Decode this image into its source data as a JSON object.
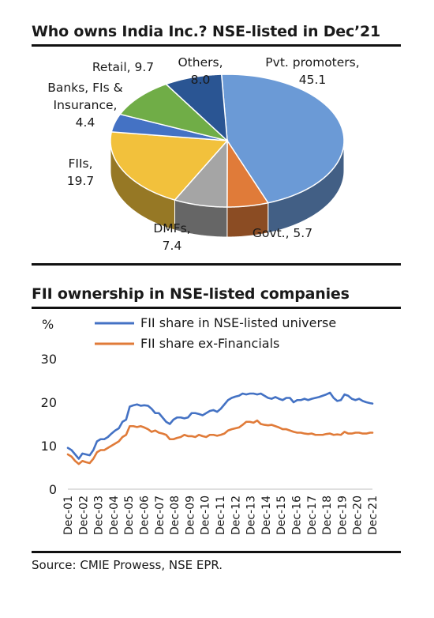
{
  "pie_title": "Who owns India Inc.? NSE-listed in Dec’21",
  "line_title": "FII ownership in NSE-listed companies",
  "source": "Source: CMIE Prowess, NSE EPR.",
  "chart_data": [
    {
      "type": "pie",
      "title": "Who owns India Inc.? NSE-listed in Dec’21",
      "slices": [
        {
          "name": "Pvt. promoters",
          "value": 45.1,
          "color": "#6b9ad6",
          "label_lines": [
            "Pvt. promoters,",
            "45.1"
          ]
        },
        {
          "name": "Govt.",
          "value": 5.7,
          "color": "#e07b39",
          "label_lines": [
            "Govt.,  5.7"
          ]
        },
        {
          "name": "DMFs",
          "value": 7.4,
          "color": "#a5a5a5",
          "label_lines": [
            "DMFs,",
            "7.4"
          ]
        },
        {
          "name": "FIIs",
          "value": 19.7,
          "color": "#f2c13c",
          "label_lines": [
            "FIIs,",
            "19.7"
          ]
        },
        {
          "name": "Banks, FIs & Insurance",
          "value": 4.4,
          "color": "#4472c4",
          "label_lines": [
            "Banks, FIs &",
            "Insurance,",
            "4.4"
          ]
        },
        {
          "name": "Retail",
          "value": 9.7,
          "color": "#70ad47",
          "label_lines": [
            "Retail,  9.7"
          ]
        },
        {
          "name": "Others",
          "value": 8.0,
          "color": "#2a5593",
          "label_lines": [
            "Others,",
            "8.0"
          ]
        }
      ]
    },
    {
      "type": "line",
      "title": "FII ownership in NSE-listed companies",
      "ylabel": "%",
      "ylim": [
        0,
        30
      ],
      "yticks": [
        0,
        10,
        20,
        30
      ],
      "x_start": 2001.0,
      "x_end": 2021.917,
      "categories": [
        "Dec-01",
        "Dec-02",
        "Dec-03",
        "Dec-04",
        "Dec-05",
        "Dec-06",
        "Dec-07",
        "Dec-08",
        "Dec-09",
        "Dec-10",
        "Dec-11",
        "Dec-12",
        "Dec-13",
        "Dec-14",
        "Dec-15",
        "Dec-16",
        "Dec-17",
        "Dec-18",
        "Dec-19",
        "Dec-20",
        "Dec-21"
      ],
      "legend": "top",
      "series": [
        {
          "name": "FII share in NSE-listed universe",
          "color": "#4472c4",
          "x": [
            2001.0,
            2001.25,
            2001.5,
            2001.75,
            2002.0,
            2002.25,
            2002.5,
            2002.75,
            2003.0,
            2003.25,
            2003.5,
            2003.75,
            2004.0,
            2004.25,
            2004.5,
            2004.75,
            2005.0,
            2005.25,
            2005.5,
            2005.75,
            2006.0,
            2006.25,
            2006.5,
            2006.75,
            2007.0,
            2007.25,
            2007.5,
            2007.75,
            2008.0,
            2008.25,
            2008.5,
            2008.75,
            2009.0,
            2009.25,
            2009.5,
            2009.75,
            2010.0,
            2010.25,
            2010.5,
            2010.75,
            2011.0,
            2011.25,
            2011.5,
            2011.75,
            2012.0,
            2012.25,
            2012.5,
            2012.75,
            2013.0,
            2013.25,
            2013.5,
            2013.75,
            2014.0,
            2014.25,
            2014.5,
            2014.75,
            2015.0,
            2015.25,
            2015.5,
            2015.75,
            2016.0,
            2016.25,
            2016.5,
            2016.75,
            2017.0,
            2017.25,
            2017.5,
            2017.75,
            2018.0,
            2018.25,
            2018.5,
            2018.75,
            2019.0,
            2019.25,
            2019.5,
            2019.75,
            2020.0,
            2020.25,
            2020.5,
            2020.75,
            2021.0,
            2021.25,
            2021.5,
            2021.75,
            2021.917
          ],
          "values": [
            9.5,
            9.0,
            8.0,
            7.0,
            8.2,
            8.0,
            7.8,
            9.0,
            11.0,
            11.5,
            11.5,
            12.0,
            12.8,
            13.5,
            14.0,
            15.5,
            16.0,
            19.0,
            19.3,
            19.5,
            19.2,
            19.3,
            19.2,
            18.5,
            17.5,
            17.5,
            16.5,
            15.5,
            15.0,
            16.0,
            16.5,
            16.5,
            16.3,
            16.5,
            17.5,
            17.5,
            17.3,
            17.0,
            17.5,
            18.0,
            18.2,
            17.8,
            18.5,
            19.5,
            20.5,
            21.0,
            21.3,
            21.5,
            22.0,
            21.8,
            22.0,
            22.0,
            21.8,
            22.0,
            21.5,
            21.0,
            20.8,
            21.2,
            20.8,
            20.5,
            21.0,
            21.0,
            20.0,
            20.5,
            20.5,
            20.8,
            20.5,
            20.8,
            21.0,
            21.2,
            21.5,
            21.8,
            22.2,
            21.0,
            20.3,
            20.5,
            21.8,
            21.5,
            20.8,
            20.5,
            20.8,
            20.3,
            20.0,
            19.8,
            19.7
          ]
        },
        {
          "name": "FII share ex-Financials",
          "color": "#e07b39",
          "x": [
            2001.0,
            2001.25,
            2001.5,
            2001.75,
            2002.0,
            2002.25,
            2002.5,
            2002.75,
            2003.0,
            2003.25,
            2003.5,
            2003.75,
            2004.0,
            2004.25,
            2004.5,
            2004.75,
            2005.0,
            2005.25,
            2005.5,
            2005.75,
            2006.0,
            2006.25,
            2006.5,
            2006.75,
            2007.0,
            2007.25,
            2007.5,
            2007.75,
            2008.0,
            2008.25,
            2008.5,
            2008.75,
            2009.0,
            2009.25,
            2009.5,
            2009.75,
            2010.0,
            2010.25,
            2010.5,
            2010.75,
            2011.0,
            2011.25,
            2011.5,
            2011.75,
            2012.0,
            2012.25,
            2012.5,
            2012.75,
            2013.0,
            2013.25,
            2013.5,
            2013.75,
            2014.0,
            2014.25,
            2014.5,
            2014.75,
            2015.0,
            2015.25,
            2015.5,
            2015.75,
            2016.0,
            2016.25,
            2016.5,
            2016.75,
            2017.0,
            2017.25,
            2017.5,
            2017.75,
            2018.0,
            2018.25,
            2018.5,
            2018.75,
            2019.0,
            2019.25,
            2019.5,
            2019.75,
            2020.0,
            2020.25,
            2020.5,
            2020.75,
            2021.0,
            2021.25,
            2021.5,
            2021.75,
            2021.917
          ],
          "values": [
            8.0,
            7.5,
            6.5,
            5.8,
            6.5,
            6.2,
            6.0,
            7.0,
            8.5,
            9.0,
            9.0,
            9.5,
            10.0,
            10.5,
            11.0,
            12.0,
            12.5,
            14.5,
            14.5,
            14.3,
            14.5,
            14.2,
            13.8,
            13.2,
            13.5,
            13.0,
            12.8,
            12.5,
            11.5,
            11.5,
            11.8,
            12.0,
            12.5,
            12.2,
            12.2,
            12.0,
            12.5,
            12.2,
            12.0,
            12.5,
            12.5,
            12.3,
            12.5,
            12.8,
            13.5,
            13.8,
            14.0,
            14.2,
            14.8,
            15.5,
            15.5,
            15.3,
            15.8,
            15.0,
            14.8,
            14.7,
            14.8,
            14.5,
            14.2,
            13.8,
            13.8,
            13.5,
            13.2,
            13.0,
            13.0,
            12.8,
            12.7,
            12.8,
            12.5,
            12.5,
            12.5,
            12.7,
            12.8,
            12.5,
            12.6,
            12.5,
            13.2,
            12.8,
            12.8,
            13.0,
            13.0,
            12.8,
            12.8,
            13.0,
            13.0
          ]
        }
      ]
    }
  ]
}
